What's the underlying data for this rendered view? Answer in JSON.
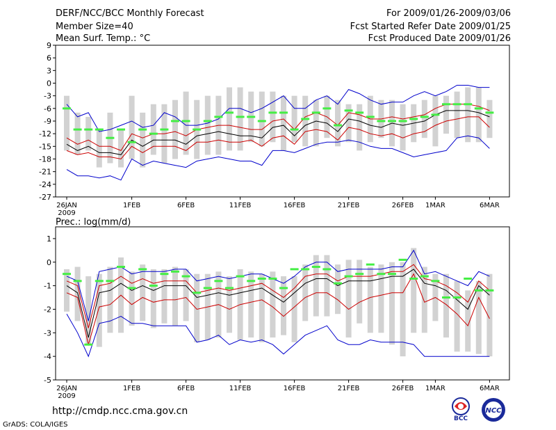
{
  "header": {
    "title": "DERF/NCC/BCC Monthly Forecast",
    "member_size": "Member Size=40",
    "variable_1": "Mean Surf. Temp.: °C",
    "period": "For 2009/01/26-2009/03/06",
    "started": "Fcst Started Refer Date 2009/01/25",
    "produced": "Fcst Produced Date 2009/01/26"
  },
  "footer": {
    "url": "http://cmdp.ncc.cma.gov.cn",
    "grads": "GrADS: COLA/IGES",
    "logo1_text": "BCC",
    "logo2_text": "NCC"
  },
  "colors": {
    "box": "#d2d2d2",
    "mean": "#000000",
    "spread": "#cc0000",
    "extreme": "#0000cc",
    "median": "#44ee44"
  },
  "chart_data": [
    {
      "type": "line",
      "title": "Mean Surf. Temp.: °C",
      "ylabel": "°C",
      "x_tick_labels": [
        "26JAN",
        "1FEB",
        "6FEB",
        "11FEB",
        "16FEB",
        "21FEB",
        "26FEB",
        "1MAR",
        "6MAR"
      ],
      "x_tick_days": [
        0,
        6,
        11,
        16,
        21,
        26,
        31,
        34,
        39
      ],
      "year_label": "2009",
      "ylim": [
        -27,
        9
      ],
      "y_ticks": [
        "9",
        "6",
        "3",
        "0",
        "-3",
        "-6",
        "-9",
        "-12",
        "-15",
        "-18",
        "-21",
        "-24",
        "-27"
      ],
      "y_tick_values": [
        9,
        6,
        3,
        0,
        -3,
        -6,
        -9,
        -12,
        -15,
        -18,
        -21,
        -24,
        -27
      ],
      "box_low": [
        -16,
        -17,
        -16,
        -20,
        -19,
        -20,
        -18,
        -20,
        -17,
        -19,
        -18,
        -17,
        -18,
        -17,
        -17,
        -16,
        -16,
        -14,
        -15,
        -14,
        -16,
        -14,
        -15,
        -15,
        -13,
        -15,
        -14,
        -16,
        -14,
        -13,
        -15,
        -16,
        -14,
        -13,
        -15,
        -12,
        -13,
        -14,
        -14,
        -13
      ],
      "box_high": [
        -3,
        -7,
        -8,
        -11,
        -7,
        -11,
        -3,
        -7,
        -5,
        -5,
        -4,
        -2,
        -4,
        -3,
        -3,
        -1,
        -1,
        -2,
        -2,
        -2,
        -3,
        -3,
        -3,
        -4,
        -3,
        -4,
        -5,
        -5,
        -3,
        -4,
        -4,
        -5,
        -5,
        -4,
        -3,
        -3,
        -2,
        -1,
        -1,
        -4
      ],
      "series": [
        {
          "name": "min",
          "values": [
            -20.5,
            -22,
            -22,
            -22.5,
            -22,
            -23,
            -18,
            -19.5,
            -18.5,
            -19,
            -19.5,
            -20,
            -18.5,
            -18,
            -17.5,
            -18,
            -18.5,
            -18.5,
            -19.5,
            -16,
            -16,
            -16.5,
            -15.5,
            -14.5,
            -14,
            -14,
            -13.5,
            -14,
            -15,
            -15.5,
            -15.5,
            -16.5,
            -17.5,
            -17,
            -16.5,
            -16,
            -13,
            -12.5,
            -13,
            -15.5
          ]
        },
        {
          "name": "lower",
          "values": [
            -16,
            -17,
            -16.5,
            -17.5,
            -17.5,
            -18,
            -15,
            -16.5,
            -15,
            -15,
            -15,
            -16,
            -14,
            -14,
            -13.5,
            -14,
            -14,
            -13.5,
            -15,
            -13,
            -12.5,
            -14.5,
            -11.5,
            -11,
            -11.5,
            -13.5,
            -10.5,
            -11,
            -12,
            -12.5,
            -12,
            -13,
            -12,
            -11.5,
            -10,
            -9,
            -8.5,
            -8,
            -8,
            -10.5
          ]
        },
        {
          "name": "mean",
          "values": [
            -14.5,
            -16,
            -15,
            -16.5,
            -16.5,
            -17,
            -13.5,
            -15,
            -13.5,
            -13.5,
            -13.5,
            -14.5,
            -12.5,
            -12,
            -11.5,
            -12,
            -12.5,
            -12.5,
            -13,
            -10.5,
            -10,
            -12.5,
            -10,
            -9,
            -9.5,
            -11.5,
            -8.5,
            -9,
            -10,
            -10.5,
            -9.5,
            -10,
            -9.5,
            -9,
            -7.5,
            -6.5,
            -6.5,
            -6.5,
            -7,
            -8
          ]
        },
        {
          "name": "upper",
          "values": [
            -13,
            -14.5,
            -13.5,
            -15,
            -15,
            -16,
            -12,
            -13,
            -12,
            -12,
            -11.5,
            -12.5,
            -11,
            -10.5,
            -10,
            -10,
            -10.5,
            -11,
            -11,
            -9,
            -8.5,
            -11,
            -8,
            -7,
            -8,
            -10,
            -7,
            -7.5,
            -8.5,
            -8.5,
            -8,
            -8.5,
            -8,
            -7.5,
            -6,
            -5,
            -5,
            -5,
            -5.5,
            -6.5
          ]
        },
        {
          "name": "max",
          "values": [
            -5,
            -8,
            -7,
            -11.5,
            -11,
            -10,
            -9,
            -10.5,
            -10,
            -7,
            -8,
            -10,
            -10,
            -9.5,
            -8.5,
            -6,
            -6,
            -7,
            -6,
            -4.5,
            -3,
            -6,
            -6,
            -4,
            -3,
            -5,
            -1.5,
            -2.5,
            -4,
            -5,
            -4.5,
            -4.5,
            -3,
            -2,
            -3,
            -2,
            -0.5,
            -0.5,
            -1,
            -1
          ]
        },
        {
          "name": "median",
          "values": [
            -6,
            -11,
            -11,
            -11,
            -13,
            -11,
            -14,
            -11,
            -12,
            -11,
            -9,
            -9,
            -11,
            -9,
            -8,
            -7,
            -8,
            -8,
            -9,
            -7,
            -7,
            -11,
            -8.5,
            -7,
            -6,
            -10,
            -6.5,
            -7,
            -8,
            -9,
            -9,
            -9,
            -8.5,
            -8,
            -7.5,
            -5,
            -5,
            -5,
            -6,
            -7
          ]
        }
      ]
    },
    {
      "type": "line",
      "title": "Prec.: log(mm/d)",
      "ylabel": "log(mm/d)",
      "x_tick_labels": [
        "26JAN",
        "1FEB",
        "6FEB",
        "11FEB",
        "16FEB",
        "21FEB",
        "26FEB",
        "1MAR",
        "6MAR"
      ],
      "x_tick_days": [
        0,
        6,
        11,
        16,
        21,
        26,
        31,
        34,
        39
      ],
      "year_label": "2009",
      "ylim": [
        -5,
        1.5
      ],
      "y_ticks": [
        "1",
        "0",
        "-1",
        "-2",
        "-3",
        "-4",
        "-5"
      ],
      "y_tick_values": [
        1,
        0,
        -1,
        -2,
        -3,
        -4,
        -5
      ],
      "box_low": [
        -2.1,
        -2.5,
        -3.5,
        -3.6,
        -3,
        -3,
        -2.7,
        -2.5,
        -2.8,
        -2.6,
        -2.7,
        -2.5,
        -3.4,
        -3.3,
        -3.2,
        -3,
        -3.3,
        -3.2,
        -3.4,
        -3.2,
        -3.1,
        -3.4,
        -2.5,
        -2.3,
        -2.3,
        -2.2,
        -3.2,
        -2.6,
        -3,
        -3,
        -3.5,
        -4,
        -3,
        -3,
        -2.5,
        -3.2,
        -3.8,
        -3.8,
        -3.9,
        -4
      ],
      "box_high": [
        -0.3,
        -0.2,
        -0.6,
        -0.5,
        -0.2,
        0.2,
        -0.4,
        -0.1,
        -0.3,
        -0.3,
        -0.2,
        -0.3,
        -0.5,
        -0.5,
        -0.4,
        -0.6,
        -0.3,
        -0.4,
        -0.5,
        -0.4,
        -0.6,
        -0.6,
        -0.1,
        0.3,
        0.3,
        -0.1,
        0.1,
        0.1,
        -0.2,
        -0.1,
        0,
        0,
        0.6,
        -0.2,
        -0.5,
        -0.5,
        -0.8,
        -1.2,
        -0.8,
        -0.5
      ],
      "series": [
        {
          "name": "min",
          "values": [
            -2.2,
            -3,
            -4,
            -2.6,
            -2.5,
            -2.3,
            -2.6,
            -2.6,
            -2.7,
            -2.7,
            -2.7,
            -2.7,
            -3.4,
            -3.3,
            -3.1,
            -3.5,
            -3.3,
            -3.4,
            -3.3,
            -3.5,
            -3.9,
            -3.5,
            -3.1,
            -2.9,
            -2.7,
            -3.3,
            -3.5,
            -3.5,
            -3.3,
            -3.4,
            -3.4,
            -3.4,
            -3.5,
            -4,
            -4,
            -4,
            -4,
            -4,
            -4,
            -4
          ]
        },
        {
          "name": "lower",
          "values": [
            -1.3,
            -1.5,
            -3.5,
            -1.9,
            -1.8,
            -1.4,
            -1.8,
            -1.5,
            -1.7,
            -1.6,
            -1.6,
            -1.5,
            -2,
            -1.9,
            -1.8,
            -2,
            -1.8,
            -1.7,
            -1.6,
            -1.9,
            -2.3,
            -1.9,
            -1.5,
            -1.3,
            -1.3,
            -1.6,
            -2,
            -1.7,
            -1.5,
            -1.4,
            -1.3,
            -1.3,
            -0.5,
            -1.7,
            -1.5,
            -1.8,
            -2.2,
            -2.7,
            -1.5,
            -2.4
          ]
        },
        {
          "name": "mean",
          "values": [
            -1,
            -1.3,
            -3.2,
            -1.3,
            -1.2,
            -0.9,
            -1.2,
            -1,
            -1.2,
            -1,
            -1,
            -1,
            -1.5,
            -1.4,
            -1.3,
            -1.4,
            -1.3,
            -1.2,
            -1.1,
            -1.4,
            -1.7,
            -1.3,
            -0.9,
            -0.7,
            -0.7,
            -1,
            -0.8,
            -0.8,
            -0.8,
            -0.7,
            -0.6,
            -0.6,
            -0.3,
            -0.9,
            -1,
            -1.2,
            -1.6,
            -2,
            -1,
            -1.4
          ]
        },
        {
          "name": "upper",
          "values": [
            -0.8,
            -1,
            -2.8,
            -1,
            -0.9,
            -0.6,
            -0.9,
            -0.7,
            -0.9,
            -0.8,
            -0.8,
            -0.8,
            -1.3,
            -1.2,
            -1.1,
            -1.2,
            -1.1,
            -1,
            -0.9,
            -1.2,
            -1.5,
            -1.1,
            -0.6,
            -0.5,
            -0.5,
            -0.8,
            -0.6,
            -0.6,
            -0.6,
            -0.5,
            -0.4,
            -0.4,
            -0.1,
            -0.7,
            -0.8,
            -1,
            -1.3,
            -1.7,
            -0.8,
            -1.2
          ]
        },
        {
          "name": "max",
          "values": [
            -0.6,
            -0.8,
            -2.5,
            -0.4,
            -0.3,
            -0.2,
            -0.5,
            -0.4,
            -0.4,
            -0.4,
            -0.3,
            -0.3,
            -0.8,
            -0.7,
            -0.6,
            -0.7,
            -0.6,
            -0.5,
            -0.5,
            -0.7,
            -0.9,
            -0.6,
            -0.2,
            0,
            0,
            -0.4,
            -0.3,
            -0.3,
            -0.3,
            -0.3,
            -0.2,
            -0.2,
            0.5,
            -0.5,
            -0.4,
            -0.6,
            -0.8,
            -1,
            -0.4,
            -0.6
          ]
        },
        {
          "name": "median",
          "values": [
            -0.5,
            -0.8,
            -3.5,
            -0.8,
            -0.8,
            -0.2,
            -1.1,
            -0.3,
            -1,
            -0.5,
            -0.4,
            -0.6,
            -1.3,
            -1.1,
            -0.8,
            -1.1,
            -0.6,
            -0.8,
            -0.7,
            -0.7,
            -1.1,
            -0.3,
            -0.3,
            -0.2,
            -0.3,
            -0.9,
            -0.6,
            -0.5,
            -0.1,
            -0.5,
            -0.5,
            0.1,
            -0.7,
            -0.6,
            -0.8,
            -1.5,
            -1.5,
            -0.7,
            -1.2,
            -1.2
          ]
        }
      ]
    }
  ]
}
